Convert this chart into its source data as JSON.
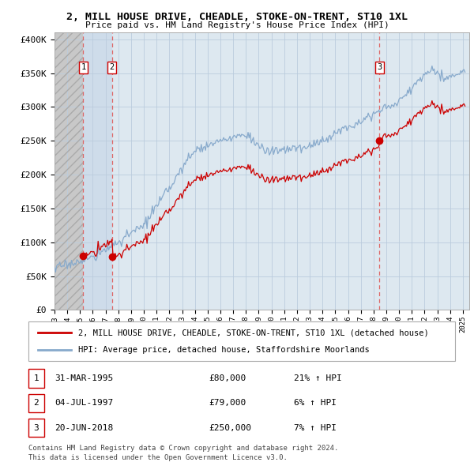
{
  "title": "2, MILL HOUSE DRIVE, CHEADLE, STOKE-ON-TRENT, ST10 1XL",
  "subtitle": "Price paid vs. HM Land Registry's House Price Index (HPI)",
  "ylabel_ticks": [
    "£0",
    "£50K",
    "£100K",
    "£150K",
    "£200K",
    "£250K",
    "£300K",
    "£350K",
    "£400K"
  ],
  "ytick_values": [
    0,
    50000,
    100000,
    150000,
    200000,
    250000,
    300000,
    350000,
    400000
  ],
  "ylim": [
    0,
    410000
  ],
  "xlim_start": 1993.0,
  "xlim_end": 2025.5,
  "hatch_end_year": 1995.25,
  "light_blue_start": 1995.25,
  "light_blue_end": 1997.5,
  "transactions": [
    {
      "label": "1",
      "date": "31-MAR-1995",
      "year": 1995.25,
      "price": 80000,
      "pct": "21% ↑ HPI"
    },
    {
      "label": "2",
      "date": "04-JUL-1997",
      "year": 1997.5,
      "price": 79000,
      "pct": "6% ↑ HPI"
    },
    {
      "label": "3",
      "date": "20-JUN-2018",
      "year": 2018.46,
      "price": 250000,
      "pct": "7% ↑ HPI"
    }
  ],
  "legend_line1": "2, MILL HOUSE DRIVE, CHEADLE, STOKE-ON-TRENT, ST10 1XL (detached house)",
  "legend_line2": "HPI: Average price, detached house, Staffordshire Moorlands",
  "footnote1": "Contains HM Land Registry data © Crown copyright and database right 2024.",
  "footnote2": "This data is licensed under the Open Government Licence v3.0.",
  "price_line_color": "#cc0000",
  "hpi_line_color": "#88aacc",
  "hatch_color": "#c0c0c0",
  "bg_color": "#dde8f0",
  "grid_color": "#bbccdd"
}
